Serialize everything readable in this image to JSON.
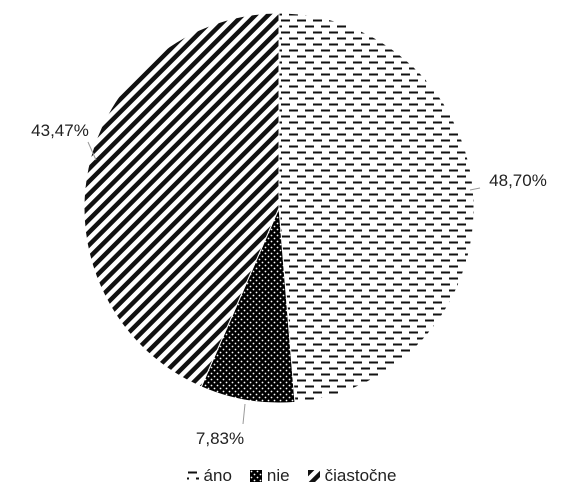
{
  "chart_data": {
    "type": "pie",
    "title": "",
    "categories": [
      "áno",
      "nie",
      "čiastočne"
    ],
    "values": [
      48.7,
      7.83,
      43.47
    ],
    "labels": [
      "48,70%",
      "7,83%",
      "43,47%"
    ],
    "legend_position": "bottom",
    "patterns": [
      "dashes",
      "dots-on-black",
      "diagonal-stripes"
    ]
  }
}
